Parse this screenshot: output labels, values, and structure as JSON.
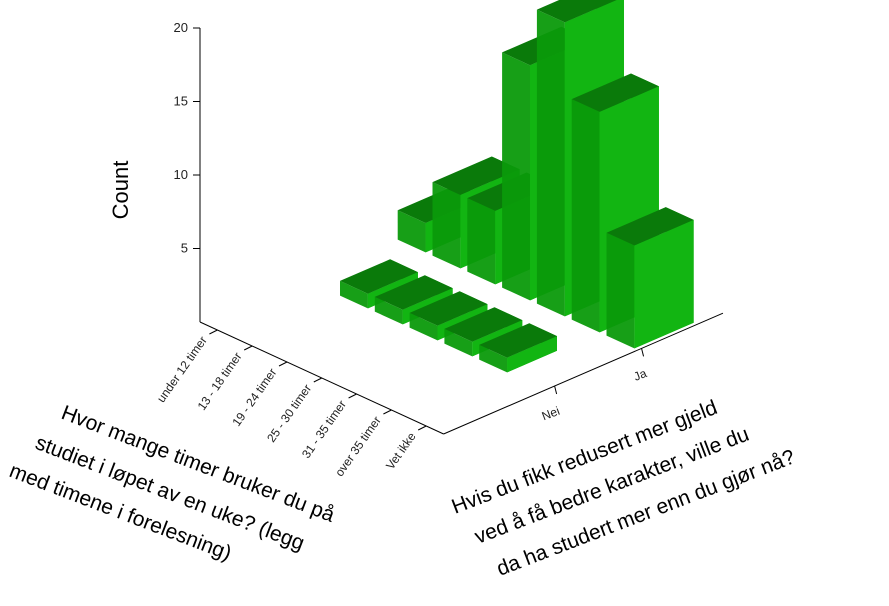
{
  "chart_data": {
    "type": "bar",
    "subtype": "3d-bar",
    "title": "",
    "ylabel": "Count",
    "ylim": [
      0,
      20
    ],
    "yticks": [
      5,
      10,
      15,
      20
    ],
    "x_axis": {
      "title_lines": [
        "Hvor mange timer bruker du på",
        "studiet i løpet av en uke? (legg",
        "med timene i forelesning)"
      ],
      "categories": [
        "under 12 timer",
        "13 - 18 timer",
        "19 - 24 timer",
        "25 - 30 timer",
        "31 - 35 timer",
        "over 35 timer",
        "Vet ikke"
      ]
    },
    "z_axis": {
      "title_lines": [
        "Hvis du fikk redusert mer gjeld",
        "ved å få bedre karakter, ville du",
        "da ha studert mer enn du gjør nå?"
      ],
      "categories": [
        "Nei",
        "Ja"
      ]
    },
    "series": [
      {
        "name": "Nei",
        "values": [
          0,
          1,
          1,
          1,
          1,
          1,
          0
        ]
      },
      {
        "name": "Ja",
        "values": [
          2,
          5,
          5,
          16,
          20,
          15,
          7
        ]
      }
    ],
    "colors": {
      "front": "#12b512",
      "top": "#0a7a0a",
      "side": "#0b9a0b"
    },
    "grid": false,
    "legend": "none"
  }
}
